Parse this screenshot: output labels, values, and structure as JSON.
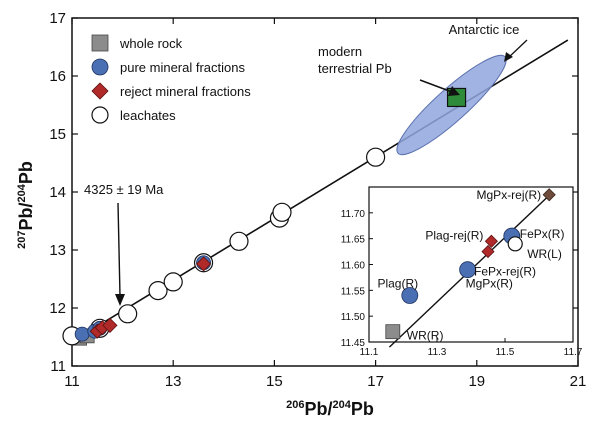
{
  "chart_data": [
    {
      "type": "scatter",
      "xlabel": {
        "pre_sup": "206",
        "main": "Pb/",
        "sup": "204",
        "post": "Pb"
      },
      "ylabel": {
        "pre_sup": "207",
        "main": "Pb/",
        "sup": "204",
        "post": "Pb"
      },
      "xlim": [
        11,
        21
      ],
      "ylim": [
        11,
        17
      ],
      "x_ticks": [
        "11",
        "13",
        "15",
        "17",
        "19",
        "21"
      ],
      "y_ticks": [
        "11",
        "12",
        "13",
        "14",
        "15",
        "16",
        "17"
      ],
      "grid": false,
      "legend_position": "top-left",
      "legend": [
        {
          "label": "whole rock",
          "marker": "square",
          "color": "#8c8c8c"
        },
        {
          "label": "pure mineral fractions",
          "marker": "circle",
          "color": "#4a6fb3"
        },
        {
          "label": "reject mineral fractions",
          "marker": "diamond",
          "color": "#b02a2a"
        },
        {
          "label": "leachates",
          "marker": "open-circle",
          "color": "#ffffff"
        }
      ],
      "isochron": {
        "label": "4325 ± 19 Ma",
        "x": [
          11,
          20.8
        ],
        "y": [
          11.42,
          16.62
        ]
      },
      "annotations": [
        {
          "text": "Antarctic ice"
        },
        {
          "text": "modern"
        },
        {
          "text": "terrestrial Pb"
        }
      ],
      "field": {
        "name": "Antarctic ice",
        "center": [
          18.5,
          15.5
        ],
        "color": "#8fa6dd"
      },
      "series": [
        {
          "name": "whole rock",
          "marker": "square",
          "points": [
            {
              "x": 11.15,
              "y": 11.48
            },
            {
              "x": 11.3,
              "y": 11.52
            }
          ]
        },
        {
          "name": "pure mineral fractions",
          "marker": "circle",
          "points": [
            {
              "x": 11.2,
              "y": 11.55
            },
            {
              "x": 11.45,
              "y": 11.6
            },
            {
              "x": 11.55,
              "y": 11.65
            },
            {
              "x": 13.6,
              "y": 12.78
            }
          ]
        },
        {
          "name": "reject mineral fractions",
          "marker": "diamond",
          "points": [
            {
              "x": 11.5,
              "y": 11.6
            },
            {
              "x": 11.6,
              "y": 11.66
            },
            {
              "x": 11.75,
              "y": 11.7
            },
            {
              "x": 13.6,
              "y": 12.76
            }
          ]
        },
        {
          "name": "leachates",
          "marker": "open-circle",
          "points": [
            {
              "x": 11.0,
              "y": 11.52
            },
            {
              "x": 11.55,
              "y": 11.65
            },
            {
              "x": 12.1,
              "y": 11.9
            },
            {
              "x": 12.7,
              "y": 12.3
            },
            {
              "x": 13.0,
              "y": 12.45
            },
            {
              "x": 13.6,
              "y": 12.78
            },
            {
              "x": 14.3,
              "y": 13.15
            },
            {
              "x": 15.1,
              "y": 13.55
            },
            {
              "x": 15.15,
              "y": 13.65
            },
            {
              "x": 17.0,
              "y": 14.6
            }
          ]
        },
        {
          "name": "modern terrestrial Pb",
          "marker": "square-green",
          "points": [
            {
              "x": 18.6,
              "y": 15.63
            }
          ]
        }
      ]
    },
    {
      "type": "scatter",
      "inset": true,
      "xlim": [
        11.1,
        11.7
      ],
      "ylim": [
        11.45,
        11.75
      ],
      "x_ticks": [
        "11.1",
        "11.3",
        "11.5",
        "11.7"
      ],
      "y_ticks": [
        "11.45",
        "11.50",
        "11.55",
        "11.60",
        "11.65",
        "11.70"
      ],
      "isochron": {
        "x": [
          11.16,
          11.64
        ],
        "y": [
          11.44,
          11.74
        ]
      },
      "points": [
        {
          "label": "WR(R)",
          "marker": "square",
          "x": 11.17,
          "y": 11.47
        },
        {
          "label": "Plag(R)",
          "marker": "circle",
          "x": 11.22,
          "y": 11.54
        },
        {
          "label": "MgPx(R)",
          "marker": "circle",
          "x": 11.39,
          "y": 11.59
        },
        {
          "label": "FePx-rej(R)",
          "marker": "diamond",
          "x": 11.45,
          "y": 11.625
        },
        {
          "label": "Plag-rej(R)",
          "marker": "diamond",
          "x": 11.46,
          "y": 11.645
        },
        {
          "label": "FePx(R)",
          "marker": "circle",
          "x": 11.52,
          "y": 11.655
        },
        {
          "label": "WR(L)",
          "marker": "open-circle",
          "x": 11.53,
          "y": 11.64
        },
        {
          "label": "MgPx-rej(R)",
          "marker": "diamond-brown",
          "x": 11.63,
          "y": 11.735
        }
      ]
    }
  ]
}
